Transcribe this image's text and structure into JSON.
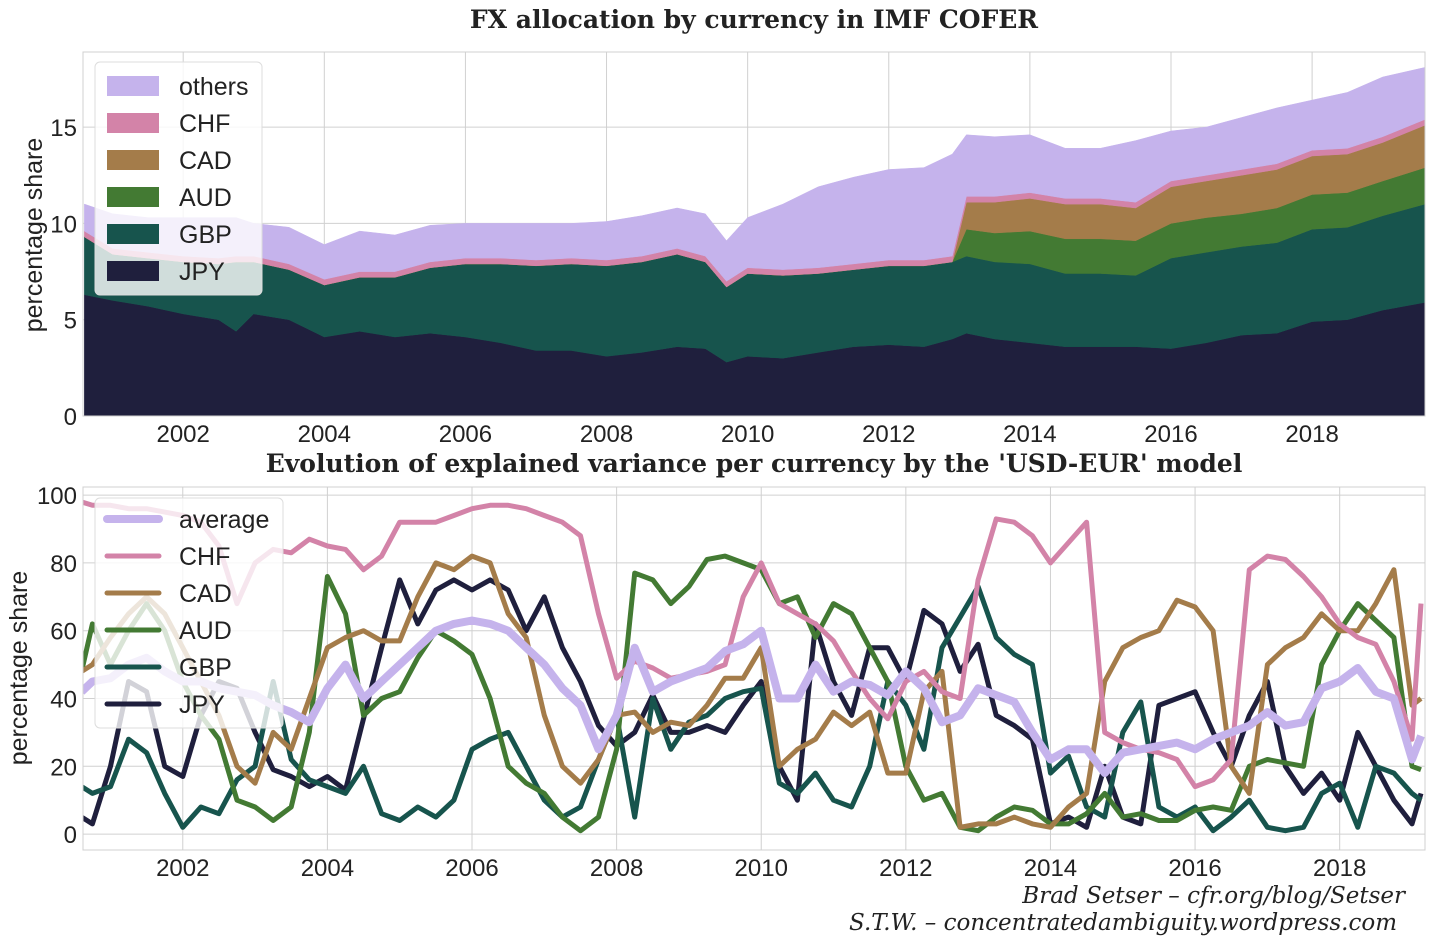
{
  "chart_data": [
    {
      "type": "area",
      "stacked": true,
      "title": "FX allocation by currency in IMF COFER",
      "xlabel": "",
      "ylabel": "percentage share",
      "xlim": [
        2000.58,
        2019.6
      ],
      "ylim": [
        0,
        18.9
      ],
      "xticks": [
        2002,
        2004,
        2006,
        2008,
        2010,
        2012,
        2014,
        2016,
        2018
      ],
      "yticks": [
        0,
        5,
        10,
        15
      ],
      "grid": true,
      "legend_position": "top-left",
      "x": [
        2000.6,
        2001,
        2001.5,
        2002,
        2002.5,
        2002.75,
        2003,
        2003.5,
        2004,
        2004.5,
        2005,
        2005.5,
        2006,
        2006.5,
        2007,
        2007.5,
        2008,
        2008.5,
        2009,
        2009.4,
        2009.7,
        2010,
        2010.5,
        2011,
        2011.5,
        2012,
        2012.5,
        2012.9,
        2013.1,
        2013.5,
        2014,
        2014.5,
        2015,
        2015.5,
        2016,
        2016.5,
        2017,
        2017.5,
        2018,
        2018.5,
        2019,
        2019.6
      ],
      "series": [
        {
          "name": "JPY",
          "color": "#1f1f3d",
          "values": [
            6.3,
            6.0,
            5.7,
            5.3,
            5.0,
            4.4,
            5.3,
            5.0,
            4.1,
            4.4,
            4.1,
            4.3,
            4.1,
            3.8,
            3.4,
            3.4,
            3.1,
            3.3,
            3.6,
            3.5,
            2.8,
            3.1,
            3.0,
            3.3,
            3.6,
            3.7,
            3.6,
            4.0,
            4.3,
            4.0,
            3.8,
            3.6,
            3.6,
            3.6,
            3.5,
            3.8,
            4.2,
            4.3,
            4.9,
            5.0,
            5.5,
            5.9
          ]
        },
        {
          "name": "GBP",
          "color": "#17544d",
          "values": [
            3.0,
            2.4,
            2.5,
            2.7,
            2.9,
            3.6,
            2.7,
            2.6,
            2.7,
            2.8,
            3.1,
            3.4,
            3.8,
            4.1,
            4.4,
            4.5,
            4.7,
            4.7,
            4.8,
            4.5,
            3.9,
            4.3,
            4.3,
            4.1,
            4.0,
            4.1,
            4.2,
            4.0,
            4.0,
            4.0,
            4.1,
            3.8,
            3.8,
            3.7,
            4.7,
            4.7,
            4.6,
            4.7,
            4.8,
            4.8,
            4.9,
            5.1
          ]
        },
        {
          "name": "AUD",
          "color": "#437a33",
          "values": [
            0,
            0,
            0,
            0,
            0,
            0,
            0,
            0,
            0,
            0,
            0,
            0,
            0,
            0,
            0,
            0,
            0,
            0,
            0,
            0,
            0,
            0,
            0,
            0,
            0,
            0,
            0,
            0,
            1.4,
            1.5,
            1.7,
            1.8,
            1.8,
            1.8,
            1.8,
            1.8,
            1.7,
            1.8,
            1.8,
            1.8,
            1.8,
            1.9
          ]
        },
        {
          "name": "CAD",
          "color": "#a47c4a",
          "values": [
            0,
            0,
            0,
            0,
            0,
            0,
            0,
            0,
            0,
            0,
            0,
            0,
            0,
            0,
            0,
            0,
            0,
            0,
            0,
            0,
            0,
            0,
            0,
            0,
            0,
            0,
            0,
            0,
            1.4,
            1.6,
            1.7,
            1.8,
            1.8,
            1.7,
            1.9,
            1.9,
            2.0,
            2.0,
            2.0,
            2.0,
            2.0,
            2.2
          ]
        },
        {
          "name": "CHF",
          "color": "#d383a8",
          "values": [
            0.3,
            0.3,
            0.3,
            0.3,
            0.3,
            0.3,
            0.3,
            0.3,
            0.3,
            0.3,
            0.3,
            0.3,
            0.3,
            0.3,
            0.3,
            0.3,
            0.3,
            0.3,
            0.3,
            0.3,
            0.3,
            0.3,
            0.3,
            0.3,
            0.3,
            0.3,
            0.3,
            0.3,
            0.3,
            0.3,
            0.3,
            0.3,
            0.3,
            0.3,
            0.3,
            0.3,
            0.3,
            0.3,
            0.3,
            0.3,
            0.3,
            0.3
          ]
        },
        {
          "name": "others",
          "color": "#c5b3ec",
          "values": [
            1.4,
            1.8,
            1.8,
            2.0,
            2.1,
            2.0,
            1.7,
            1.9,
            1.8,
            2.1,
            1.9,
            1.9,
            1.8,
            1.8,
            1.9,
            1.8,
            2.0,
            2.1,
            2.1,
            2.2,
            2.1,
            2.6,
            3.4,
            4.2,
            4.5,
            4.7,
            4.8,
            5.3,
            3.2,
            3.1,
            3.0,
            2.6,
            2.6,
            3.2,
            2.6,
            2.5,
            2.7,
            2.9,
            2.6,
            2.9,
            3.1,
            2.7
          ]
        }
      ]
    },
    {
      "type": "line",
      "title": "Evolution of explained variance per currency by the 'USD-EUR' model",
      "xlabel": "",
      "ylabel": "percentage share",
      "xlim": [
        2000.62,
        2019.18
      ],
      "ylim": [
        -4.7,
        102.4
      ],
      "xticks": [
        2002,
        2004,
        2006,
        2008,
        2010,
        2012,
        2014,
        2016,
        2018
      ],
      "yticks": [
        0,
        20,
        40,
        60,
        80,
        100
      ],
      "grid": true,
      "legend_position": "top-left",
      "x": [
        2000.6,
        2000.75,
        2001,
        2001.25,
        2001.5,
        2001.75,
        2002,
        2002.25,
        2002.5,
        2002.75,
        2003,
        2003.25,
        2003.5,
        2003.75,
        2004,
        2004.25,
        2004.5,
        2004.75,
        2005,
        2005.25,
        2005.5,
        2005.75,
        2006,
        2006.25,
        2006.5,
        2006.75,
        2007,
        2007.25,
        2007.5,
        2007.75,
        2008,
        2008.25,
        2008.5,
        2008.75,
        2009,
        2009.25,
        2009.5,
        2009.75,
        2010,
        2010.25,
        2010.5,
        2010.75,
        2011,
        2011.25,
        2011.5,
        2011.75,
        2012,
        2012.25,
        2012.5,
        2012.75,
        2013,
        2013.25,
        2013.5,
        2013.75,
        2014,
        2014.25,
        2014.5,
        2014.75,
        2015,
        2015.25,
        2015.5,
        2015.75,
        2016,
        2016.25,
        2016.5,
        2016.75,
        2017,
        2017.25,
        2017.5,
        2017.75,
        2018,
        2018.25,
        2018.5,
        2018.75,
        2019,
        2019.125
      ],
      "series": [
        {
          "name": "average",
          "color": "#c5b3ec",
          "width": 8,
          "values": [
            42,
            45,
            46,
            50,
            52,
            48,
            45,
            45,
            43,
            42,
            41,
            38,
            36,
            33,
            43,
            50,
            40,
            45,
            50,
            55,
            60,
            62,
            63,
            62,
            60,
            55,
            50,
            43,
            38,
            25,
            35,
            55,
            42,
            45,
            47,
            49,
            54,
            56,
            60,
            40,
            40,
            50,
            42,
            45,
            44,
            41,
            48,
            43,
            33,
            35,
            43,
            41,
            39,
            30,
            22,
            25,
            25,
            18,
            24,
            25,
            26,
            27,
            25,
            28,
            30,
            32,
            36,
            32,
            33,
            43,
            45,
            49,
            42,
            40,
            22,
            29
          ]
        },
        {
          "name": "CHF",
          "color": "#d383a8",
          "width": 5,
          "values": [
            98,
            97,
            97,
            96,
            96,
            95,
            94,
            92,
            85,
            68,
            80,
            84,
            83,
            87,
            85,
            84,
            78,
            82,
            92,
            92,
            92,
            94,
            96,
            97,
            97,
            96,
            94,
            92,
            88,
            65,
            46,
            51,
            49,
            46,
            47,
            48,
            50,
            70,
            80,
            68,
            65,
            62,
            57,
            48,
            40,
            34,
            45,
            48,
            42,
            40,
            75,
            93,
            92,
            88,
            80,
            86,
            92,
            30,
            27,
            25,
            24,
            22,
            14,
            16,
            22,
            78,
            82,
            81,
            76,
            70,
            62,
            58,
            56,
            45,
            28,
            68
          ]
        },
        {
          "name": "CAD",
          "color": "#a47c4a",
          "width": 5,
          "values": [
            48,
            50,
            58,
            65,
            70,
            65,
            55,
            45,
            35,
            20,
            15,
            30,
            25,
            40,
            55,
            58,
            60,
            57,
            57,
            70,
            80,
            78,
            82,
            80,
            65,
            58,
            35,
            20,
            15,
            22,
            35,
            36,
            30,
            33,
            32,
            38,
            46,
            46,
            55,
            20,
            25,
            28,
            36,
            32,
            36,
            18,
            18,
            42,
            48,
            2,
            3,
            3,
            5,
            3,
            2,
            8,
            12,
            45,
            55,
            58,
            60,
            69,
            67,
            60,
            20,
            12,
            50,
            55,
            58,
            65,
            60,
            60,
            68,
            78,
            38,
            40
          ]
        },
        {
          "name": "AUD",
          "color": "#437a33",
          "width": 5,
          "values": [
            48,
            62,
            50,
            60,
            68,
            60,
            45,
            35,
            28,
            10,
            8,
            4,
            8,
            30,
            76,
            65,
            35,
            40,
            42,
            52,
            60,
            57,
            53,
            40,
            20,
            15,
            12,
            5,
            1,
            5,
            25,
            77,
            75,
            68,
            73,
            81,
            82,
            80,
            78,
            68,
            70,
            58,
            68,
            65,
            55,
            45,
            20,
            10,
            12,
            2,
            1,
            5,
            8,
            7,
            3,
            3,
            6,
            12,
            5,
            6,
            4,
            4,
            7,
            8,
            7,
            20,
            22,
            21,
            20,
            50,
            60,
            68,
            63,
            58,
            20,
            19
          ]
        },
        {
          "name": "GBP",
          "color": "#17544d",
          "width": 5,
          "values": [
            14,
            12,
            14,
            28,
            24,
            12,
            2,
            8,
            6,
            16,
            20,
            45,
            22,
            16,
            14,
            12,
            20,
            6,
            4,
            8,
            5,
            10,
            25,
            28,
            30,
            20,
            10,
            5,
            8,
            22,
            35,
            5,
            40,
            25,
            33,
            35,
            40,
            42,
            43,
            15,
            12,
            18,
            10,
            8,
            20,
            45,
            38,
            25,
            55,
            64,
            73,
            58,
            53,
            50,
            18,
            23,
            8,
            5,
            30,
            39,
            8,
            5,
            8,
            1,
            5,
            10,
            2,
            1,
            2,
            12,
            15,
            2,
            20,
            18,
            12,
            10
          ]
        },
        {
          "name": "JPY",
          "color": "#1f1f3d",
          "width": 5,
          "values": [
            5,
            3,
            20,
            45,
            42,
            20,
            17,
            35,
            45,
            43,
            30,
            19,
            17,
            14,
            17,
            13,
            34,
            55,
            75,
            62,
            72,
            75,
            72,
            75,
            72,
            60,
            70,
            55,
            45,
            32,
            26,
            30,
            41,
            30,
            30,
            32,
            30,
            38,
            45,
            20,
            10,
            62,
            45,
            35,
            55,
            55,
            45,
            66,
            62,
            48,
            56,
            35,
            32,
            28,
            3,
            5,
            2,
            20,
            5,
            3,
            38,
            40,
            42,
            30,
            20,
            35,
            45,
            20,
            12,
            18,
            10,
            30,
            20,
            10,
            3,
            12
          ]
        }
      ]
    }
  ],
  "credits": {
    "line1": "Brad Setser – cfr.org/blog/Setser",
    "line2": "S.T.W. – concentratedambiguity.wordpress.com"
  }
}
